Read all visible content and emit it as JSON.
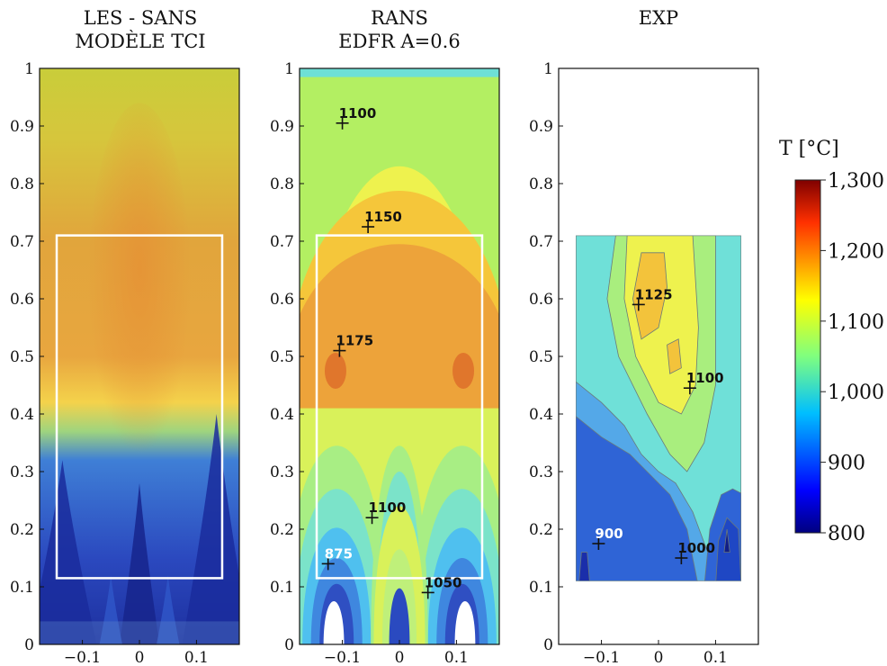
{
  "chart_data": {
    "type": "heatmap",
    "panels": [
      {
        "title_lines": [
          "LES - SANS",
          "MODÈLE TCI"
        ],
        "x_ticks": [
          -0.1,
          0,
          0.1
        ],
        "x_tick_labels": [
          "−0.1",
          "0",
          "0.1"
        ],
        "y_ticks": [
          0,
          0.1,
          0.2,
          0.3,
          0.4,
          0.5,
          0.6,
          0.7,
          0.8,
          0.9,
          1
        ],
        "y_tick_labels": [
          "0",
          "0.1",
          "0.2",
          "0.3",
          "0.4",
          "0.5",
          "0.6",
          "0.7",
          "0.8",
          "0.9",
          "1"
        ],
        "xlim": [
          -0.175,
          0.175
        ],
        "ylim": [
          0,
          1
        ],
        "box": {
          "x0": -0.145,
          "x1": 0.145,
          "y0": 0.115,
          "y1": 0.71
        },
        "annotations": []
      },
      {
        "title_lines": [
          "RANS",
          "EDFR A=0.6"
        ],
        "x_ticks": [
          -0.1,
          0,
          0.1
        ],
        "x_tick_labels": [
          "−0.1",
          "0",
          "0.1"
        ],
        "y_ticks": [
          0,
          0.1,
          0.2,
          0.3,
          0.4,
          0.5,
          0.6,
          0.7,
          0.8,
          0.9,
          1
        ],
        "y_tick_labels": [
          "0",
          "0.1",
          "0.2",
          "0.3",
          "0.4",
          "0.5",
          "0.6",
          "0.7",
          "0.8",
          "0.9",
          "1"
        ],
        "xlim": [
          -0.175,
          0.175
        ],
        "ylim": [
          0,
          1
        ],
        "box": {
          "x0": -0.145,
          "x1": 0.145,
          "y0": 0.115,
          "y1": 0.71
        },
        "annotations": [
          {
            "label": "1100",
            "x": -0.1,
            "y": 0.905
          },
          {
            "label": "1150",
            "x": -0.055,
            "y": 0.725
          },
          {
            "label": "1175",
            "x": -0.105,
            "y": 0.51
          },
          {
            "label": "1100",
            "x": -0.048,
            "y": 0.22
          },
          {
            "label": "875",
            "x": -0.125,
            "y": 0.14
          },
          {
            "label": "1050",
            "x": 0.05,
            "y": 0.09
          }
        ]
      },
      {
        "title_lines": [
          "EXP"
        ],
        "x_ticks": [
          -0.1,
          0,
          0.1
        ],
        "x_tick_labels": [
          "−0.1",
          "0",
          "0.1"
        ],
        "y_ticks": [
          0,
          0.1,
          0.2,
          0.3,
          0.4,
          0.5,
          0.6,
          0.7,
          0.8,
          0.9,
          1
        ],
        "y_tick_labels": [
          "0",
          "0.1",
          "0.2",
          "0.3",
          "0.4",
          "0.5",
          "0.6",
          "0.7",
          "0.8",
          "0.9",
          "1"
        ],
        "xlim": [
          -0.175,
          0.175
        ],
        "ylim": [
          0,
          1
        ],
        "data_region": {
          "x0": -0.145,
          "x1": 0.145,
          "y0": 0.11,
          "y1": 0.71
        },
        "annotations": [
          {
            "label": "1125",
            "x": -0.035,
            "y": 0.59
          },
          {
            "label": "1100",
            "x": 0.055,
            "y": 0.445
          },
          {
            "label": "900",
            "x": -0.105,
            "y": 0.175
          },
          {
            "label": "1000",
            "x": 0.04,
            "y": 0.15
          }
        ]
      }
    ],
    "colorbar": {
      "label": "T [°C]",
      "ticks": [
        1300,
        1200,
        1100,
        1000,
        900,
        800
      ],
      "tick_labels": [
        "1,300",
        "1,200",
        "1,100",
        "1,000",
        "900",
        "800"
      ],
      "range": [
        800,
        1300
      ],
      "colormap": "jet"
    }
  }
}
